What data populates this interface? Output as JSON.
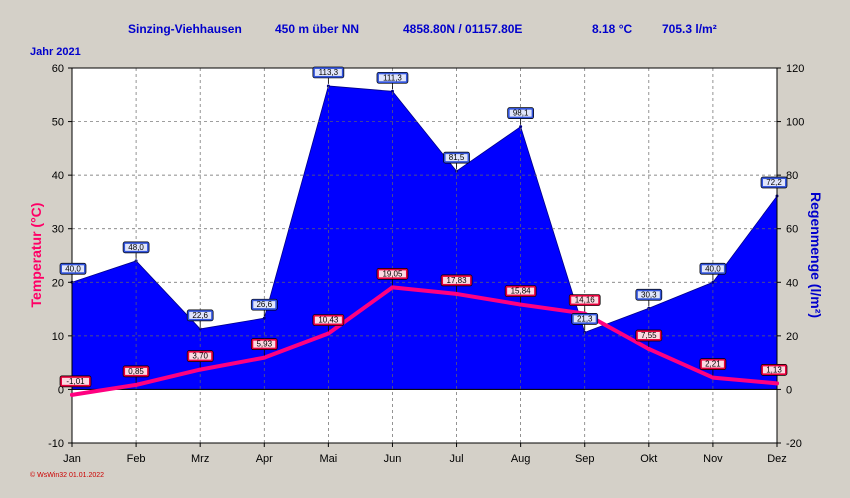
{
  "header": {
    "station": "Sinzing-Viehhausen",
    "altitude": "450 m über NN",
    "coords": "4858.80N / 01157.80E",
    "mean_temp": "8.18 °C",
    "total_precip": "705.3 l/m²",
    "year": "Jahr  2021"
  },
  "footer": {
    "note": "© WsWin32  01.01.2022"
  },
  "colors": {
    "precip_fill": "#0000ff",
    "temp_line": "#ff0080",
    "precip_label_bg": "#3355dd",
    "temp_label_bg": "#e8003c",
    "plot_bg": "#ffffff",
    "frame_bg": "#d4d0c8",
    "header_text": "#0000cc"
  },
  "chart_data": {
    "type": "line",
    "categories": [
      "Jan",
      "Feb",
      "Mrz",
      "Apr",
      "Mai",
      "Jun",
      "Jul",
      "Aug",
      "Sep",
      "Okt",
      "Nov",
      "Dez"
    ],
    "series": [
      {
        "name": "",
        "axis": "right",
        "kind": "area",
        "values": [
          40.0,
          48.0,
          22.6,
          26.6,
          113.3,
          111.3,
          81.5,
          98.1,
          21.3,
          30.3,
          40.0,
          72.2
        ],
        "labels": [
          "40,0",
          "48,0",
          "22,6",
          "26,6",
          "113,3",
          "111,3",
          "81,5",
          "98,1",
          "21,3",
          "30,3",
          "40,0",
          "72,2"
        ]
      },
      {
        "name": "",
        "axis": "left",
        "kind": "line",
        "values": [
          -1.01,
          0.85,
          3.7,
          5.93,
          10.43,
          19.05,
          17.83,
          15.84,
          14.16,
          7.55,
          2.21,
          1.13
        ],
        "labels": [
          "-1,01",
          "0,85",
          "3,70",
          "5,93",
          "10,43",
          "19,05",
          "17,83",
          "15,84",
          "14,16",
          "7,55",
          "2,21",
          "1,13"
        ]
      }
    ],
    "ylabel": "Temperatur  (°C)",
    "ylim": [
      -10,
      60
    ],
    "yticks": [
      "-10",
      "0",
      "10",
      "20",
      "30",
      "40",
      "50",
      "60"
    ],
    "y2label": "Regenmenge  (l/m²)",
    "y2lim": [
      -20,
      120
    ],
    "y2ticks": [
      "-20",
      "0",
      "20",
      "40",
      "60",
      "80",
      "100",
      "120"
    ],
    "grid": true,
    "legend": "none"
  }
}
